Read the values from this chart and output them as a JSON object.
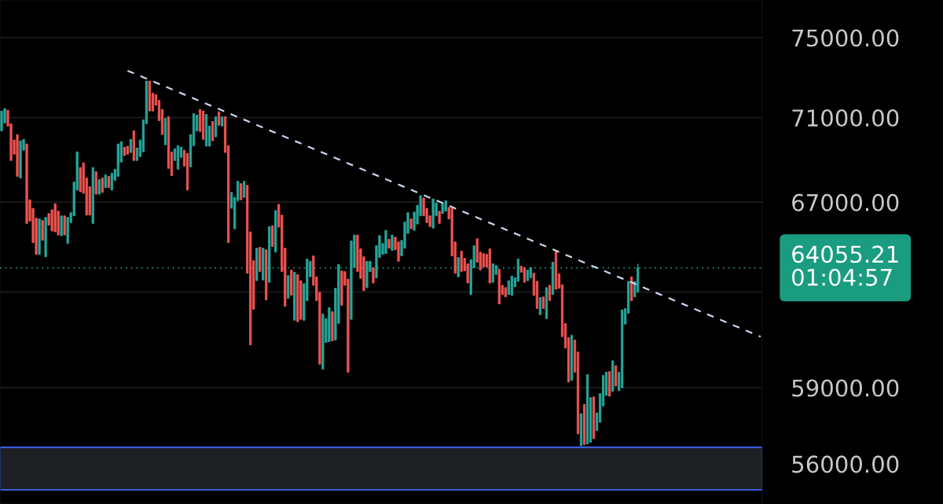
{
  "chart_data": {
    "type": "candlestick",
    "categories": [
      null,
      null,
      null,
      null,
      null,
      null,
      null,
      null,
      null,
      null,
      null,
      null,
      null,
      null,
      null,
      null,
      null,
      null,
      null,
      null,
      null,
      null,
      null,
      null,
      null,
      null,
      null,
      null,
      null,
      null,
      null,
      null,
      null,
      null,
      null,
      null,
      null,
      null,
      null,
      null,
      null,
      null,
      null,
      null,
      null,
      null,
      null,
      null,
      null,
      null,
      null,
      null,
      null,
      null,
      null,
      null,
      null,
      null,
      null,
      null,
      null,
      null,
      null,
      null,
      null,
      null,
      null,
      null,
      null,
      null,
      null,
      null,
      null,
      null,
      null,
      null,
      null,
      null,
      null,
      null,
      null,
      null,
      null,
      null,
      null,
      null,
      null,
      null,
      null,
      null,
      null,
      null,
      null,
      null,
      null,
      null,
      null,
      null,
      null,
      null,
      null,
      null,
      null,
      null,
      null,
      null,
      null,
      null,
      null,
      null,
      null,
      null,
      null,
      null,
      null,
      null,
      null,
      null,
      null,
      null,
      null,
      null,
      null,
      null,
      null,
      null,
      null,
      null,
      null,
      null,
      null,
      null,
      null,
      null,
      null,
      null,
      null,
      null,
      null,
      null,
      null,
      null,
      null,
      null,
      null,
      null,
      null,
      null,
      null,
      null,
      null,
      null,
      null,
      null,
      null,
      null,
      null,
      null,
      null,
      null,
      null,
      null,
      null,
      null,
      null,
      null,
      null,
      null,
      null,
      null,
      null,
      null,
      null,
      null,
      null,
      null,
      null,
      null,
      null,
      null,
      null,
      null,
      null,
      null,
      null,
      null,
      null,
      null,
      null,
      null,
      null,
      null,
      null,
      null,
      null,
      null,
      null,
      null,
      null,
      null,
      null,
      null,
      null,
      null,
      null,
      null,
      null,
      null,
      null,
      null,
      null,
      null,
      null,
      null,
      null,
      null,
      null,
      null,
      null,
      null,
      null,
      null,
      null,
      null,
      null,
      null,
      null,
      null,
      null,
      null,
      null,
      null,
      null,
      null,
      null,
      null,
      null,
      null,
      null,
      null,
      null,
      null
    ],
    "ohlc": [
      [
        70360,
        71320,
        70360,
        71320
      ],
      [
        70740,
        71440,
        70740,
        71440
      ],
      [
        71360,
        71360,
        70590,
        70590
      ],
      [
        70700,
        70700,
        68940,
        68940
      ],
      [
        69920,
        69920,
        69240,
        69240
      ],
      [
        70180,
        70180,
        68200,
        68200
      ],
      [
        68120,
        69880,
        68120,
        69880
      ],
      [
        69430,
        69950,
        69430,
        69950
      ],
      [
        69730,
        69730,
        66030,
        66030
      ],
      [
        67110,
        67110,
        66140,
        66140
      ],
      [
        66720,
        66720,
        65170,
        65170
      ],
      [
        66270,
        66270,
        64650,
        64650
      ],
      [
        64650,
        66240,
        64650,
        66240
      ],
      [
        66170,
        66170,
        65270,
        65270
      ],
      [
        64540,
        66310,
        64540,
        66310
      ],
      [
        66480,
        66480,
        65960,
        65960
      ],
      [
        66650,
        66650,
        65690,
        65690
      ],
      [
        66930,
        66930,
        65650,
        65650
      ],
      [
        66590,
        66590,
        65510,
        65510
      ],
      [
        65480,
        66380,
        65480,
        66380
      ],
      [
        66380,
        66380,
        65510,
        65510
      ],
      [
        65130,
        66310,
        65130,
        66310
      ],
      [
        66070,
        66520,
        66070,
        66520
      ],
      [
        66380,
        67930,
        66380,
        67930
      ],
      [
        67560,
        69350,
        67560,
        69350
      ],
      [
        68610,
        68610,
        67480,
        67480
      ],
      [
        68830,
        68830,
        67410,
        67410
      ],
      [
        68120,
        68120,
        66410,
        66410
      ],
      [
        67710,
        67710,
        66410,
        66410
      ],
      [
        66030,
        68610,
        66030,
        68610
      ],
      [
        68420,
        68420,
        67370,
        67370
      ],
      [
        67370,
        68050,
        67370,
        68050
      ],
      [
        68120,
        68120,
        67450,
        67450
      ],
      [
        67670,
        68270,
        67670,
        68270
      ],
      [
        68200,
        68200,
        67670,
        67670
      ],
      [
        67560,
        68340,
        67560,
        68340
      ],
      [
        68010,
        68530,
        68010,
        68530
      ],
      [
        68200,
        69730,
        68200,
        69730
      ],
      [
        68870,
        69840,
        68870,
        69840
      ],
      [
        69580,
        69580,
        69170,
        69170
      ],
      [
        69620,
        69620,
        69240,
        69240
      ],
      [
        69320,
        69950,
        69320,
        69950
      ],
      [
        70360,
        70360,
        68940,
        68940
      ],
      [
        68940,
        69540,
        68940,
        69540
      ],
      [
        69130,
        69920,
        69130,
        69920
      ],
      [
        69350,
        70890,
        69350,
        70890
      ],
      [
        70700,
        72800,
        70700,
        72800
      ],
      [
        72800,
        72800,
        71320,
        71320
      ],
      [
        72200,
        72200,
        71320,
        71320
      ],
      [
        72120,
        72120,
        71600,
        71600
      ],
      [
        71840,
        71840,
        70850,
        70850
      ],
      [
        71400,
        71400,
        70180,
        70180
      ],
      [
        69690,
        70960,
        69690,
        70960
      ],
      [
        71040,
        71040,
        68570,
        68570
      ],
      [
        69350,
        69350,
        68230,
        68230
      ],
      [
        68940,
        69500,
        68940,
        69500
      ],
      [
        68530,
        69650,
        68530,
        69650
      ],
      [
        69090,
        69580,
        69090,
        69580
      ],
      [
        69430,
        69430,
        68680,
        68680
      ],
      [
        69280,
        69280,
        67560,
        67560
      ],
      [
        68640,
        70180,
        68640,
        70180
      ],
      [
        69650,
        71200,
        69650,
        71200
      ],
      [
        70360,
        71120,
        70360,
        71120
      ],
      [
        71400,
        71400,
        70330,
        70330
      ],
      [
        71320,
        71320,
        69950,
        69950
      ],
      [
        69620,
        71160,
        69620,
        71160
      ],
      [
        69620,
        70590,
        69620,
        70590
      ],
      [
        70810,
        70810,
        69880,
        69880
      ],
      [
        70070,
        71040,
        70070,
        71040
      ],
      [
        71280,
        71280,
        70630,
        70630
      ],
      [
        70590,
        71040,
        70590,
        71040
      ],
      [
        71040,
        71040,
        69320,
        69320
      ],
      [
        69650,
        69650,
        65170,
        65170
      ],
      [
        66720,
        67450,
        66720,
        67450
      ],
      [
        65790,
        67220,
        65790,
        67220
      ],
      [
        67070,
        67970,
        67070,
        67970
      ],
      [
        67860,
        67860,
        67110,
        67110
      ],
      [
        67220,
        67970,
        67220,
        67970
      ],
      [
        67780,
        67780,
        63820,
        63820
      ],
      [
        65650,
        65650,
        60760,
        60760
      ],
      [
        64370,
        64370,
        62260,
        62260
      ],
      [
        63490,
        64920,
        63490,
        64920
      ],
      [
        64960,
        64960,
        63890,
        63890
      ],
      [
        63520,
        64920,
        63520,
        64920
      ],
      [
        64850,
        64850,
        62660,
        62660
      ],
      [
        63420,
        65890,
        63420,
        65890
      ],
      [
        65930,
        65930,
        64990,
        64990
      ],
      [
        64750,
        66620,
        64750,
        66620
      ],
      [
        66900,
        66900,
        65860,
        65860
      ],
      [
        66410,
        66410,
        63890,
        63890
      ],
      [
        64920,
        64920,
        62390,
        62390
      ],
      [
        62730,
        63720,
        62730,
        63720
      ],
      [
        63960,
        63960,
        62860,
        62860
      ],
      [
        61790,
        63860,
        61790,
        63860
      ],
      [
        63760,
        63760,
        61730,
        61730
      ],
      [
        63490,
        63490,
        61830,
        61830
      ],
      [
        61790,
        63360,
        61790,
        63360
      ],
      [
        62630,
        64440,
        62630,
        64440
      ],
      [
        63660,
        64340,
        63660,
        64340
      ],
      [
        64580,
        64580,
        63290,
        63290
      ],
      [
        63660,
        63660,
        62630,
        62630
      ],
      [
        62990,
        62990,
        59960,
        59960
      ],
      [
        59760,
        62060,
        59760,
        62060
      ],
      [
        60860,
        61860,
        60860,
        61860
      ],
      [
        60890,
        62330,
        60890,
        62330
      ],
      [
        62160,
        62160,
        60930,
        60930
      ],
      [
        60960,
        63160,
        60960,
        63160
      ],
      [
        61660,
        64200,
        61660,
        64200
      ],
      [
        63920,
        63920,
        62430,
        62430
      ],
      [
        63890,
        63890,
        63290,
        63290
      ],
      [
        63560,
        63560,
        59630,
        59630
      ],
      [
        61830,
        65240,
        61830,
        65240
      ],
      [
        64060,
        65510,
        64060,
        65510
      ],
      [
        65510,
        65510,
        63890,
        63890
      ],
      [
        64890,
        64890,
        63590,
        63590
      ],
      [
        64540,
        64540,
        63060,
        63060
      ],
      [
        63190,
        64340,
        63190,
        64340
      ],
      [
        63890,
        64340,
        63890,
        64340
      ],
      [
        64060,
        64060,
        63390,
        63390
      ],
      [
        63620,
        65030,
        63620,
        65030
      ],
      [
        64510,
        65480,
        64510,
        65480
      ],
      [
        64650,
        65130,
        64650,
        65130
      ],
      [
        64680,
        65720,
        64680,
        65720
      ],
      [
        65320,
        65320,
        64920,
        64920
      ],
      [
        64820,
        65510,
        64820,
        65510
      ],
      [
        65410,
        65410,
        64850,
        64850
      ],
      [
        65200,
        65200,
        64340,
        64340
      ],
      [
        64580,
        65270,
        64580,
        65270
      ],
      [
        64920,
        66100,
        64920,
        66100
      ],
      [
        65580,
        66520,
        65580,
        66520
      ],
      [
        66240,
        66240,
        65790,
        65790
      ],
      [
        65720,
        66550,
        65720,
        66550
      ],
      [
        66000,
        66860,
        66000,
        66860
      ],
      [
        66380,
        67300,
        66380,
        67300
      ],
      [
        67190,
        67190,
        66380,
        66380
      ],
      [
        66720,
        66720,
        66070,
        66070
      ],
      [
        66380,
        66380,
        65890,
        65890
      ],
      [
        65820,
        67150,
        65820,
        67150
      ],
      [
        66380,
        66970,
        66380,
        66970
      ],
      [
        66590,
        66590,
        66030,
        66030
      ],
      [
        66480,
        66930,
        66480,
        66930
      ],
      [
        66590,
        67070,
        66590,
        67070
      ],
      [
        66760,
        66760,
        66240,
        66240
      ],
      [
        66720,
        66720,
        64580,
        64580
      ],
      [
        65200,
        65200,
        63820,
        63820
      ],
      [
        63660,
        64510,
        63660,
        64510
      ],
      [
        64790,
        64790,
        63890,
        63890
      ],
      [
        64470,
        64470,
        63920,
        63920
      ],
      [
        64230,
        64230,
        63390,
        63390
      ],
      [
        62890,
        64410,
        62890,
        64410
      ],
      [
        64060,
        65030,
        64060,
        65030
      ],
      [
        65340,
        65340,
        64300,
        64300
      ],
      [
        64750,
        64750,
        63960,
        63960
      ],
      [
        64680,
        64680,
        64090,
        64090
      ],
      [
        64650,
        64650,
        64090,
        64090
      ],
      [
        64890,
        64890,
        63390,
        63390
      ],
      [
        63420,
        64230,
        63420,
        64230
      ],
      [
        63760,
        64160,
        63760,
        64160
      ],
      [
        63990,
        63990,
        62490,
        62490
      ],
      [
        63290,
        63290,
        62890,
        62890
      ],
      [
        63190,
        63190,
        62790,
        62790
      ],
      [
        62890,
        63490,
        62890,
        63490
      ],
      [
        62860,
        63690,
        62860,
        63690
      ],
      [
        63220,
        63620,
        63220,
        63620
      ],
      [
        63460,
        64440,
        63460,
        64440
      ],
      [
        64130,
        64130,
        63860,
        63860
      ],
      [
        64060,
        64060,
        63420,
        63420
      ],
      [
        63490,
        63960,
        63490,
        63960
      ],
      [
        63620,
        64060,
        63620,
        64060
      ],
      [
        63820,
        63820,
        62860,
        62860
      ],
      [
        63460,
        63460,
        62290,
        62290
      ],
      [
        62030,
        62760,
        62030,
        62760
      ],
      [
        62790,
        62790,
        62290,
        62290
      ],
      [
        61860,
        63190,
        61860,
        63190
      ],
      [
        63290,
        63290,
        62630,
        62630
      ],
      [
        62890,
        64300,
        62890,
        64300
      ],
      [
        64820,
        64820,
        63120,
        63120
      ],
      [
        63790,
        63790,
        63160,
        63160
      ],
      [
        63320,
        63320,
        61100,
        61100
      ],
      [
        61660,
        61660,
        60630,
        60630
      ],
      [
        61060,
        61060,
        59230,
        59230
      ],
      [
        59300,
        61160,
        59300,
        61160
      ],
      [
        60960,
        60960,
        59630,
        59630
      ],
      [
        60460,
        60460,
        57160,
        57160
      ],
      [
        56700,
        57960,
        56700,
        57960
      ],
      [
        58330,
        58330,
        56740,
        56740
      ],
      [
        56770,
        59530,
        56770,
        59530
      ],
      [
        56830,
        58600,
        56830,
        58600
      ],
      [
        58630,
        58630,
        56980,
        56980
      ],
      [
        57290,
        57990,
        57290,
        57990
      ],
      [
        57620,
        58760,
        57620,
        58760
      ],
      [
        58270,
        59500,
        58270,
        59500
      ],
      [
        58690,
        59630,
        58690,
        59630
      ],
      [
        59660,
        59660,
        58660,
        58660
      ],
      [
        58850,
        60100,
        58850,
        60100
      ],
      [
        59900,
        59900,
        59070,
        59070
      ],
      [
        58880,
        59630,
        58880,
        59630
      ],
      [
        59000,
        62230,
        59000,
        62230
      ],
      [
        61630,
        62290,
        61630,
        62290
      ],
      [
        62090,
        63460,
        62090,
        63460
      ],
      [
        63660,
        63660,
        62630,
        62630
      ],
      [
        62790,
        63460,
        62790,
        63460
      ],
      [
        62990,
        64230,
        62990,
        64055.21
      ],
      null,
      null,
      null,
      null,
      null,
      null,
      null,
      null,
      null,
      null,
      null,
      null,
      null,
      null,
      null,
      null,
      null,
      null,
      null,
      null,
      null,
      null,
      null,
      null,
      null,
      null,
      null,
      null,
      null,
      null,
      null,
      null,
      null,
      null,
      null,
      null,
      null,
      null,
      null
    ],
    "series": [
      {
        "type": "line",
        "values": [
          null,
          null,
          null,
          null,
          null,
          null,
          null,
          null,
          null,
          null,
          null,
          null,
          null,
          null,
          null,
          null,
          null,
          null,
          null,
          null,
          null,
          null,
          null,
          null,
          null,
          null,
          null,
          null,
          null,
          null,
          null,
          null,
          null,
          null,
          null,
          null,
          null,
          null,
          null,
          null,
          73320,
          null,
          null,
          null,
          null,
          null,
          null,
          null,
          null,
          null,
          null,
          null,
          null,
          null,
          null,
          null,
          null,
          null,
          null,
          null,
          null,
          null,
          null,
          null,
          null,
          null,
          null,
          null,
          null,
          null,
          null,
          null,
          null,
          null,
          null,
          null,
          null,
          null,
          null,
          null,
          null,
          null,
          null,
          null,
          null,
          null,
          null,
          null,
          null,
          null,
          null,
          null,
          null,
          null,
          null,
          null,
          null,
          null,
          null,
          null,
          null,
          null,
          null,
          null,
          null,
          null,
          null,
          null,
          null,
          null,
          null,
          null,
          null,
          null,
          null,
          null,
          null,
          null,
          null,
          null,
          null,
          null,
          null,
          null,
          null,
          null,
          null,
          null,
          null,
          null,
          null,
          null,
          null,
          null,
          null,
          null,
          null,
          null,
          null,
          null,
          null,
          null,
          null,
          null,
          null,
          null,
          null,
          null,
          null,
          null,
          null,
          null,
          null,
          null,
          null,
          null,
          null,
          null,
          null,
          null,
          null,
          null,
          null,
          null,
          null,
          null,
          null,
          null,
          null,
          null,
          null,
          null,
          null,
          null,
          null,
          null,
          null,
          null,
          null,
          null,
          null,
          null,
          null,
          null,
          null,
          null,
          null,
          null,
          null,
          null,
          null,
          null,
          null,
          null,
          null,
          null,
          null,
          null,
          null,
          null,
          null,
          null,
          null,
          null,
          null,
          null,
          null,
          null,
          null,
          null,
          null,
          null,
          null,
          null,
          null,
          null,
          null,
          null,
          null,
          null,
          null,
          null,
          null,
          null,
          null,
          null,
          null,
          null,
          null,
          null,
          null,
          null,
          null,
          null,
          null,
          null,
          null,
          null,
          null,
          null,
          null,
          61100
        ],
        "color": "#c8d6ee",
        "line_style": "dashed"
      }
    ],
    "log": "y",
    "ylim": [
      54480,
      76960
    ],
    "yticks": [
      {
        "value": 56000,
        "label": "56000.00"
      },
      {
        "value": 59000,
        "label": "59000.00"
      },
      {
        "value": 63000,
        "label": null
      },
      {
        "value": 67000,
        "label": "67000.00"
      },
      {
        "value": 71000,
        "label": "71000.00"
      },
      {
        "value": 75000,
        "label": "75000.00"
      }
    ],
    "grid": "y",
    "tick_labels": "y",
    "ref_lines": [
      {
        "axis": "y",
        "value": 64055.21,
        "label": "64055.21",
        "color": "#1a9c80",
        "line_style": "dotted"
      }
    ],
    "bands": [
      {
        "axis": "y",
        "from": 55010,
        "to": 56640,
        "color": "#3a5bd9"
      }
    ],
    "annotations": [
      "01:04:57"
    ]
  }
}
